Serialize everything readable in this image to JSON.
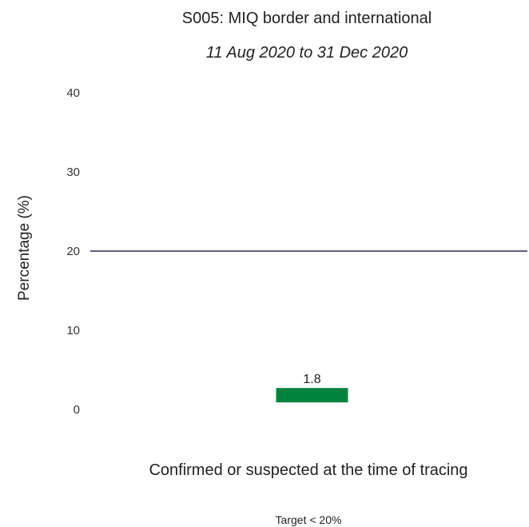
{
  "chart_data": {
    "type": "bar",
    "title": "S005: MIQ border and international",
    "subtitle": "11 Aug 2020 to 31 Dec 2020",
    "ylabel": "Percentage (%)",
    "xlabel": "",
    "categories": [
      "Confirmed or suspected at the time of tracing"
    ],
    "values": [
      1.8
    ],
    "data_labels": [
      "1.8"
    ],
    "ylim": [
      0,
      40
    ],
    "yticks": [
      "0",
      "10",
      "20",
      "30",
      "40"
    ],
    "reference_line": {
      "value": 20,
      "color": "#2b2d4f"
    },
    "footnote": "Target < 20%",
    "bar_color": "#00843d",
    "grid": false
  }
}
